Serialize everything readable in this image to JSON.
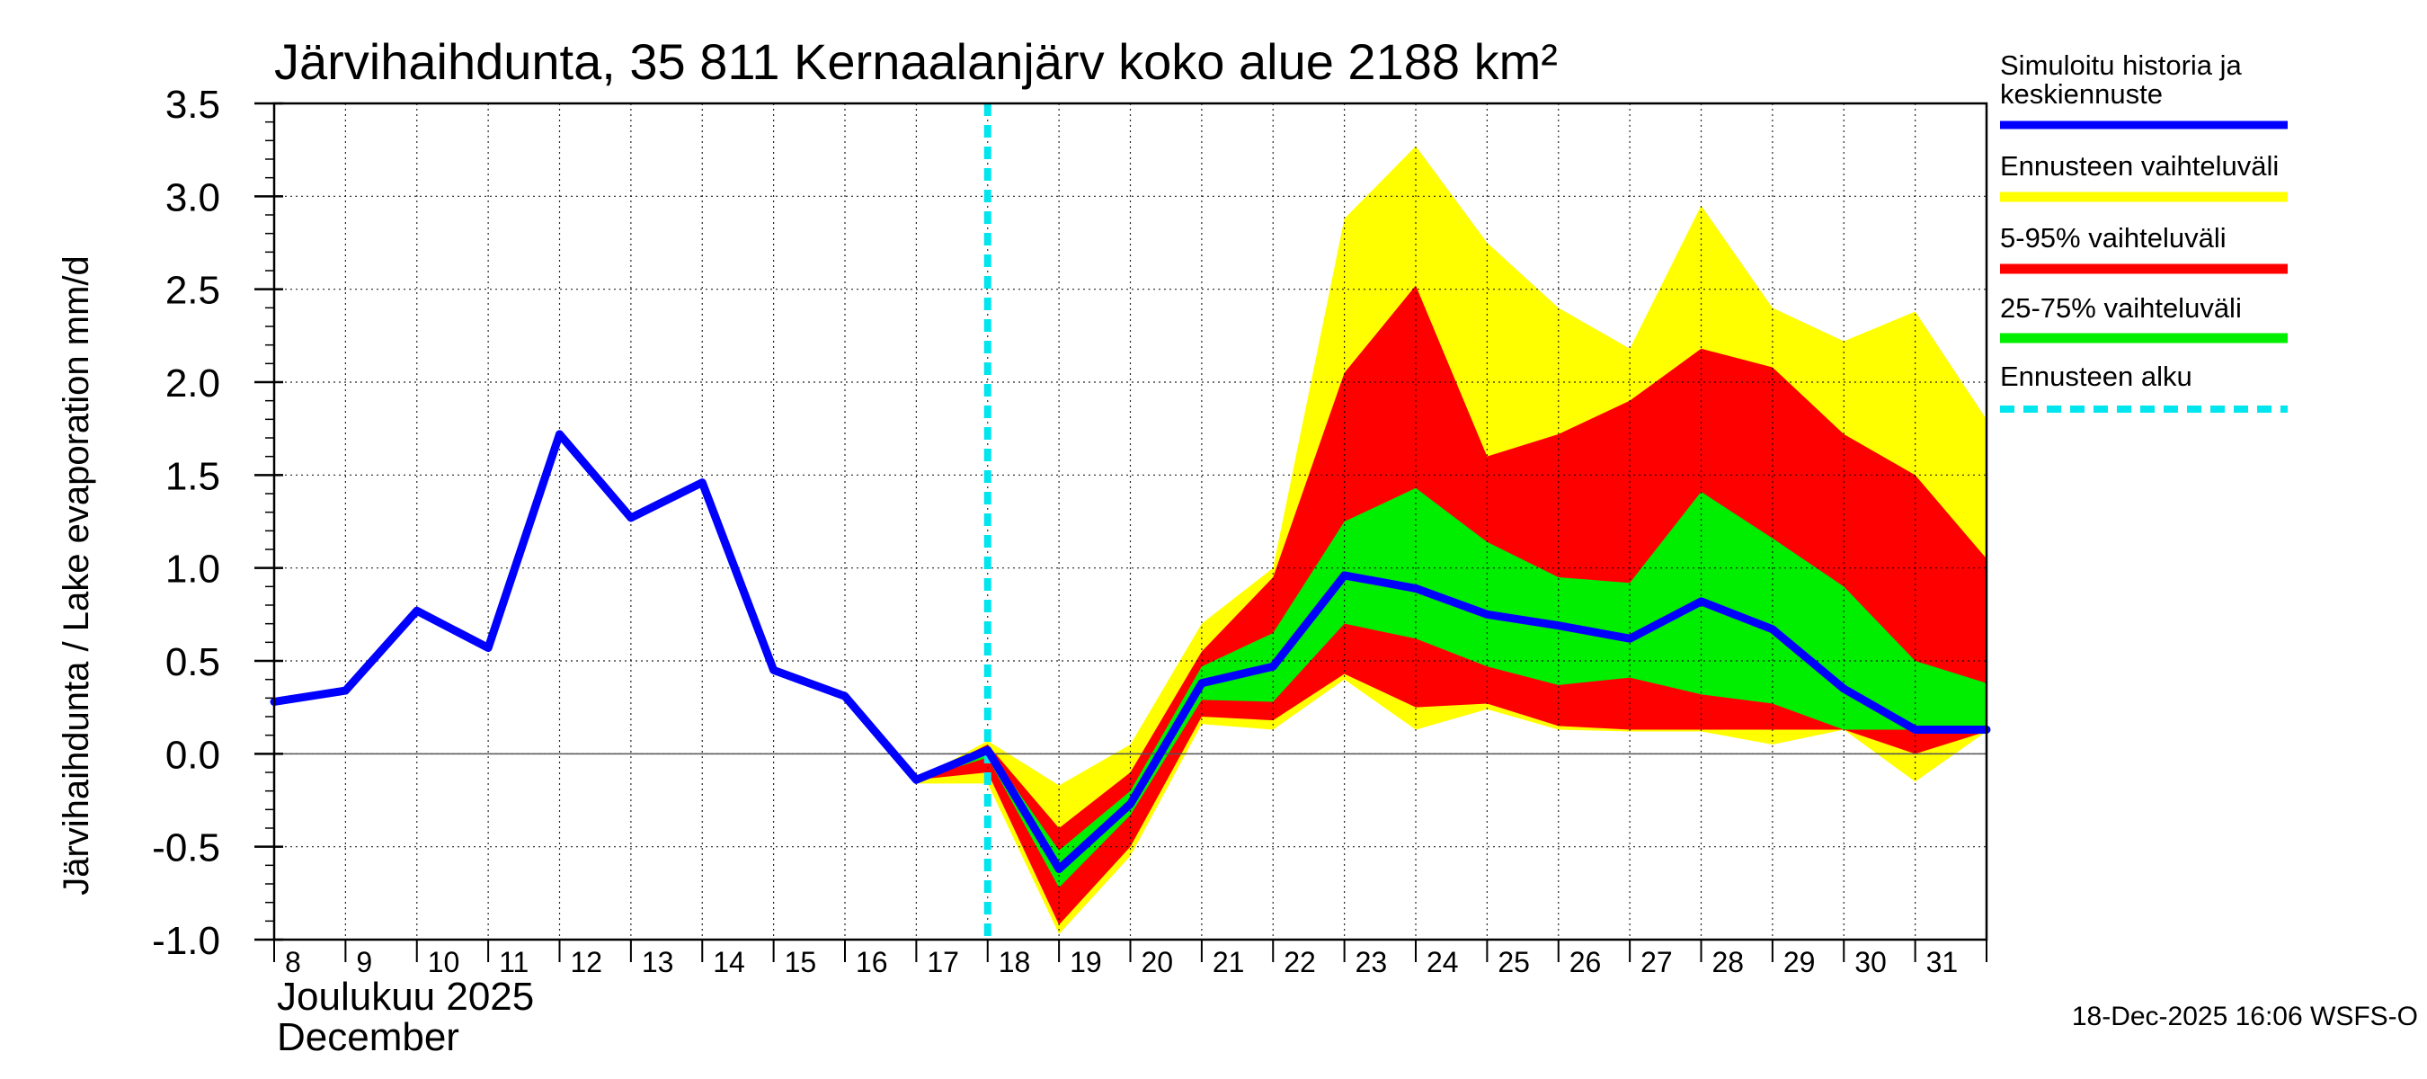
{
  "chart_data": {
    "type": "area",
    "title": "Järvihaihdunta, 35 811 Kernaalanjärv koko alue 2188 km²",
    "ylabel": "Järvihaihdunta / Lake evaporation   mm/d",
    "xlabel_line1": "Joulukuu  2025",
    "xlabel_line2": "December",
    "ylim": [
      -1.0,
      3.5
    ],
    "yticks": [
      "-1.0",
      "-0.5",
      "0.0",
      "0.5",
      "1.0",
      "1.5",
      "2.0",
      "2.5",
      "3.0",
      "3.5"
    ],
    "x_range": [
      8,
      32
    ],
    "day_labels": [
      "8",
      "9",
      "10",
      "11",
      "12",
      "13",
      "14",
      "15",
      "16",
      "17",
      "18",
      "19",
      "20",
      "21",
      "22",
      "23",
      "24",
      "25",
      "26",
      "27",
      "28",
      "29",
      "30",
      "31"
    ],
    "forecast_start_day": 18,
    "history": {
      "x": [
        8,
        9,
        10,
        11,
        12,
        13,
        14,
        15,
        16,
        17,
        18,
        19,
        20,
        21,
        22,
        23,
        24,
        25,
        26,
        27,
        28,
        29,
        30,
        31,
        32
      ],
      "y": [
        0.28,
        0.34,
        0.77,
        0.57,
        1.72,
        1.27,
        1.46,
        0.45,
        0.31,
        -0.14,
        0.02,
        -0.62,
        -0.27,
        0.38,
        0.47,
        0.96,
        0.89,
        0.75,
        0.69,
        0.62,
        0.82,
        0.67,
        0.35,
        0.13,
        0.13
      ]
    },
    "bands": [
      {
        "name": "Ennusteen vaihteluväli",
        "color": "#ffff00",
        "x": [
          17,
          18,
          19,
          20,
          21,
          22,
          23,
          24,
          25,
          26,
          27,
          28,
          29,
          30,
          31,
          32
        ],
        "upper": [
          -0.14,
          0.07,
          -0.17,
          0.05,
          0.7,
          1.0,
          2.88,
          3.27,
          2.75,
          2.4,
          2.18,
          2.95,
          2.4,
          2.22,
          2.38,
          1.8
        ],
        "lower": [
          -0.16,
          -0.16,
          -0.97,
          -0.55,
          0.16,
          0.13,
          0.4,
          0.13,
          0.24,
          0.13,
          0.12,
          0.12,
          0.05,
          0.13,
          -0.15,
          0.12
        ]
      },
      {
        "name": "5-95% vaihteluväli",
        "color": "#ff0000",
        "x": [
          17,
          18,
          19,
          20,
          21,
          22,
          23,
          24,
          25,
          26,
          27,
          28,
          29,
          30,
          31,
          32
        ],
        "upper": [
          -0.14,
          0.05,
          -0.4,
          -0.1,
          0.55,
          0.95,
          2.05,
          2.52,
          1.6,
          1.72,
          1.9,
          2.18,
          2.08,
          1.72,
          1.5,
          1.05
        ],
        "lower": [
          -0.14,
          -0.1,
          -0.92,
          -0.5,
          0.2,
          0.18,
          0.43,
          0.25,
          0.27,
          0.15,
          0.13,
          0.13,
          0.13,
          0.13,
          0.0,
          0.12
        ]
      },
      {
        "name": "25-75% vaihteluväli",
        "color": "#00ee00",
        "x": [
          17,
          18,
          19,
          20,
          21,
          22,
          23,
          24,
          25,
          26,
          27,
          28,
          29,
          30,
          31,
          32
        ],
        "upper": [
          -0.14,
          0.03,
          -0.52,
          -0.2,
          0.47,
          0.65,
          1.25,
          1.43,
          1.14,
          0.95,
          0.92,
          1.41,
          1.16,
          0.9,
          0.5,
          0.38
        ],
        "lower": [
          -0.14,
          -0.02,
          -0.72,
          -0.33,
          0.29,
          0.28,
          0.7,
          0.62,
          0.47,
          0.37,
          0.41,
          0.32,
          0.27,
          0.13,
          0.13,
          0.13
        ]
      }
    ],
    "legend": [
      {
        "label": "Simuloitu historia ja",
        "label2": "keskiennuste",
        "color": "#0000ff",
        "style": "solid"
      },
      {
        "label": "Ennusteen vaihteluväli",
        "color": "#ffff00",
        "style": "solid"
      },
      {
        "label": "5-95% vaihteluväli",
        "color": "#ff0000",
        "style": "solid"
      },
      {
        "label": "25-75% vaihteluväli",
        "color": "#00ee00",
        "style": "solid"
      },
      {
        "label": "Ennusteen alku",
        "color": "#00e5ee",
        "style": "dashed"
      }
    ],
    "footer": "18-Dec-2025 16:06 WSFS-O"
  }
}
